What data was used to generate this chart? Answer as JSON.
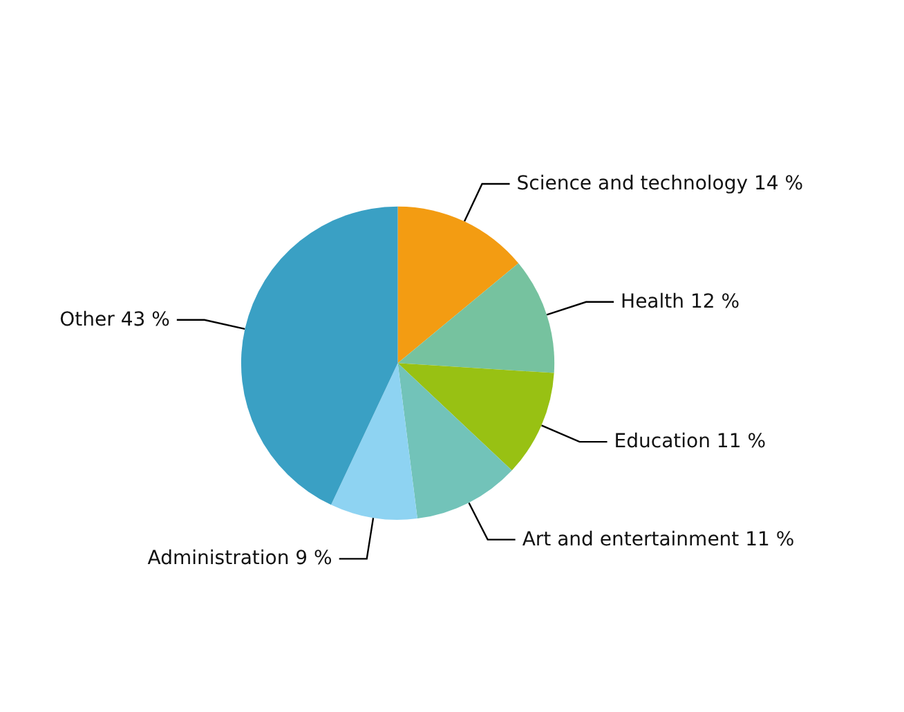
{
  "chart_data": {
    "type": "pie",
    "categories": [
      "Science and technology",
      "Health",
      "Education",
      "Art and entertainment",
      "Administration",
      "Other"
    ],
    "values": [
      14,
      12,
      11,
      11,
      9,
      43
    ],
    "value_labels": [
      "14 %",
      "12 %",
      "11 %",
      "11 %",
      "9 %",
      "43 %"
    ],
    "colors": [
      "#f39c12",
      "#76c29f",
      "#98c113",
      "#72c3b9",
      "#8ed3f2",
      "#3aa0c4"
    ]
  }
}
